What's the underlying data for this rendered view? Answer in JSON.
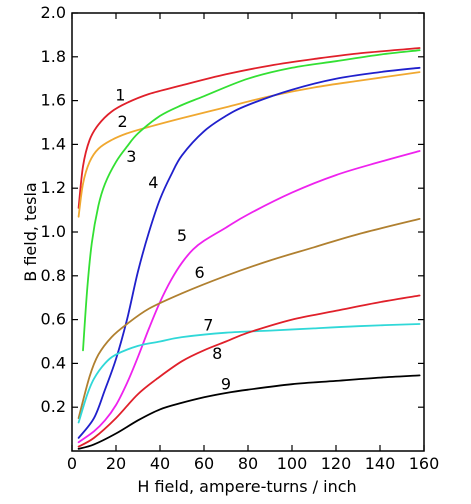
{
  "chart_data": {
    "type": "line",
    "title": "",
    "xlabel": "H field, ampere-turns / inch",
    "ylabel": "B field, tesla",
    "xlim": [
      0,
      160
    ],
    "ylim": [
      0,
      2.0
    ],
    "xticks": [
      "0",
      "20",
      "40",
      "60",
      "80",
      "100",
      "120",
      "140",
      "160"
    ],
    "yticks": [
      "0.2",
      "0.4",
      "0.6",
      "0.8",
      "1.0",
      "1.2",
      "1.4",
      "1.6",
      "1.8",
      "2.0"
    ],
    "grid": false,
    "series": [
      {
        "name": "1",
        "color": "#e0202a",
        "points": [
          [
            3,
            1.11
          ],
          [
            5,
            1.3
          ],
          [
            8,
            1.42
          ],
          [
            12,
            1.49
          ],
          [
            18,
            1.55
          ],
          [
            25,
            1.59
          ],
          [
            35,
            1.63
          ],
          [
            50,
            1.67
          ],
          [
            70,
            1.72
          ],
          [
            90,
            1.76
          ],
          [
            110,
            1.79
          ],
          [
            130,
            1.815
          ],
          [
            158,
            1.84
          ]
        ]
      },
      {
        "name": "2",
        "color": "#f0a830",
        "points": [
          [
            3,
            1.07
          ],
          [
            5,
            1.22
          ],
          [
            8,
            1.32
          ],
          [
            12,
            1.38
          ],
          [
            18,
            1.42
          ],
          [
            25,
            1.45
          ],
          [
            35,
            1.48
          ],
          [
            50,
            1.52
          ],
          [
            70,
            1.57
          ],
          [
            90,
            1.62
          ],
          [
            110,
            1.66
          ],
          [
            130,
            1.69
          ],
          [
            158,
            1.73
          ]
        ]
      },
      {
        "name": "3",
        "color": "#33e033",
        "points": [
          [
            5,
            0.46
          ],
          [
            7,
            0.75
          ],
          [
            9,
            0.95
          ],
          [
            12,
            1.12
          ],
          [
            15,
            1.22
          ],
          [
            20,
            1.32
          ],
          [
            25,
            1.39
          ],
          [
            30,
            1.45
          ],
          [
            40,
            1.53
          ],
          [
            50,
            1.58
          ],
          [
            60,
            1.62
          ],
          [
            80,
            1.7
          ],
          [
            100,
            1.75
          ],
          [
            120,
            1.78
          ],
          [
            140,
            1.81
          ],
          [
            158,
            1.83
          ]
        ]
      },
      {
        "name": "4",
        "color": "#2020cc",
        "points": [
          [
            3,
            0.06
          ],
          [
            10,
            0.15
          ],
          [
            15,
            0.28
          ],
          [
            20,
            0.42
          ],
          [
            25,
            0.6
          ],
          [
            30,
            0.82
          ],
          [
            35,
            1.0
          ],
          [
            40,
            1.15
          ],
          [
            45,
            1.26
          ],
          [
            50,
            1.35
          ],
          [
            60,
            1.46
          ],
          [
            70,
            1.53
          ],
          [
            80,
            1.58
          ],
          [
            100,
            1.65
          ],
          [
            120,
            1.7
          ],
          [
            140,
            1.73
          ],
          [
            158,
            1.75
          ]
        ]
      },
      {
        "name": "5",
        "color": "#ee22ee",
        "points": [
          [
            3,
            0.04
          ],
          [
            10,
            0.09
          ],
          [
            15,
            0.14
          ],
          [
            20,
            0.21
          ],
          [
            25,
            0.31
          ],
          [
            30,
            0.43
          ],
          [
            35,
            0.56
          ],
          [
            40,
            0.68
          ],
          [
            45,
            0.78
          ],
          [
            50,
            0.86
          ],
          [
            55,
            0.92
          ],
          [
            60,
            0.96
          ],
          [
            70,
            1.02
          ],
          [
            80,
            1.08
          ],
          [
            100,
            1.18
          ],
          [
            120,
            1.26
          ],
          [
            140,
            1.32
          ],
          [
            158,
            1.37
          ]
        ]
      },
      {
        "name": "6",
        "color": "#b08030",
        "points": [
          [
            3,
            0.15
          ],
          [
            8,
            0.34
          ],
          [
            12,
            0.44
          ],
          [
            18,
            0.52
          ],
          [
            25,
            0.58
          ],
          [
            35,
            0.65
          ],
          [
            50,
            0.72
          ],
          [
            70,
            0.8
          ],
          [
            90,
            0.87
          ],
          [
            110,
            0.93
          ],
          [
            130,
            0.99
          ],
          [
            158,
            1.06
          ]
        ]
      },
      {
        "name": "7",
        "color": "#30d8d8",
        "points": [
          [
            3,
            0.13
          ],
          [
            7,
            0.26
          ],
          [
            10,
            0.33
          ],
          [
            15,
            0.4
          ],
          [
            20,
            0.44
          ],
          [
            30,
            0.48
          ],
          [
            40,
            0.5
          ],
          [
            50,
            0.52
          ],
          [
            70,
            0.54
          ],
          [
            90,
            0.55
          ],
          [
            110,
            0.56
          ],
          [
            130,
            0.57
          ],
          [
            158,
            0.58
          ]
        ]
      },
      {
        "name": "8",
        "color": "#e0202a",
        "points": [
          [
            3,
            0.02
          ],
          [
            10,
            0.06
          ],
          [
            20,
            0.15
          ],
          [
            30,
            0.26
          ],
          [
            40,
            0.34
          ],
          [
            50,
            0.41
          ],
          [
            60,
            0.46
          ],
          [
            70,
            0.5
          ],
          [
            80,
            0.54
          ],
          [
            100,
            0.6
          ],
          [
            120,
            0.64
          ],
          [
            140,
            0.68
          ],
          [
            158,
            0.71
          ]
        ]
      },
      {
        "name": "9",
        "color": "#000000",
        "points": [
          [
            3,
            0.01
          ],
          [
            10,
            0.03
          ],
          [
            20,
            0.08
          ],
          [
            30,
            0.14
          ],
          [
            40,
            0.19
          ],
          [
            50,
            0.22
          ],
          [
            60,
            0.245
          ],
          [
            70,
            0.265
          ],
          [
            80,
            0.28
          ],
          [
            100,
            0.305
          ],
          [
            120,
            0.32
          ],
          [
            140,
            0.335
          ],
          [
            158,
            0.345
          ]
        ]
      }
    ],
    "annotations": [
      {
        "text": "1",
        "x": 22,
        "y": 1.6
      },
      {
        "text": "2",
        "x": 23,
        "y": 1.48
      },
      {
        "text": "3",
        "x": 27,
        "y": 1.32
      },
      {
        "text": "4",
        "x": 37,
        "y": 1.2
      },
      {
        "text": "5",
        "x": 50,
        "y": 0.96
      },
      {
        "text": "6",
        "x": 58,
        "y": 0.79
      },
      {
        "text": "7",
        "x": 62,
        "y": 0.55
      },
      {
        "text": "8",
        "x": 66,
        "y": 0.42
      },
      {
        "text": "9",
        "x": 70,
        "y": 0.28
      }
    ]
  }
}
